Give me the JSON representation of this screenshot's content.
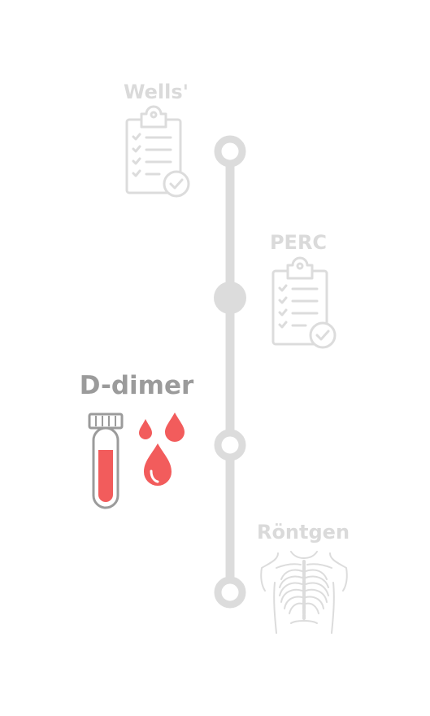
{
  "steps": [
    {
      "id": "wells",
      "label": "Wells'",
      "icon": "clipboard-checklist-icon",
      "state": "inactive"
    },
    {
      "id": "perc",
      "label": "PERC",
      "icon": "clipboard-checklist-icon",
      "state": "inactive"
    },
    {
      "id": "ddimer",
      "label": "D-dimer",
      "icon": "blood-test-tube-icon",
      "state": "active"
    },
    {
      "id": "rontgen",
      "label": "Röntgen",
      "icon": "chest-xray-icon",
      "state": "inactive"
    }
  ],
  "colors": {
    "inactive": "#dcdcdc",
    "active_text": "#9b9b9b",
    "accent": "#f25c5c"
  }
}
